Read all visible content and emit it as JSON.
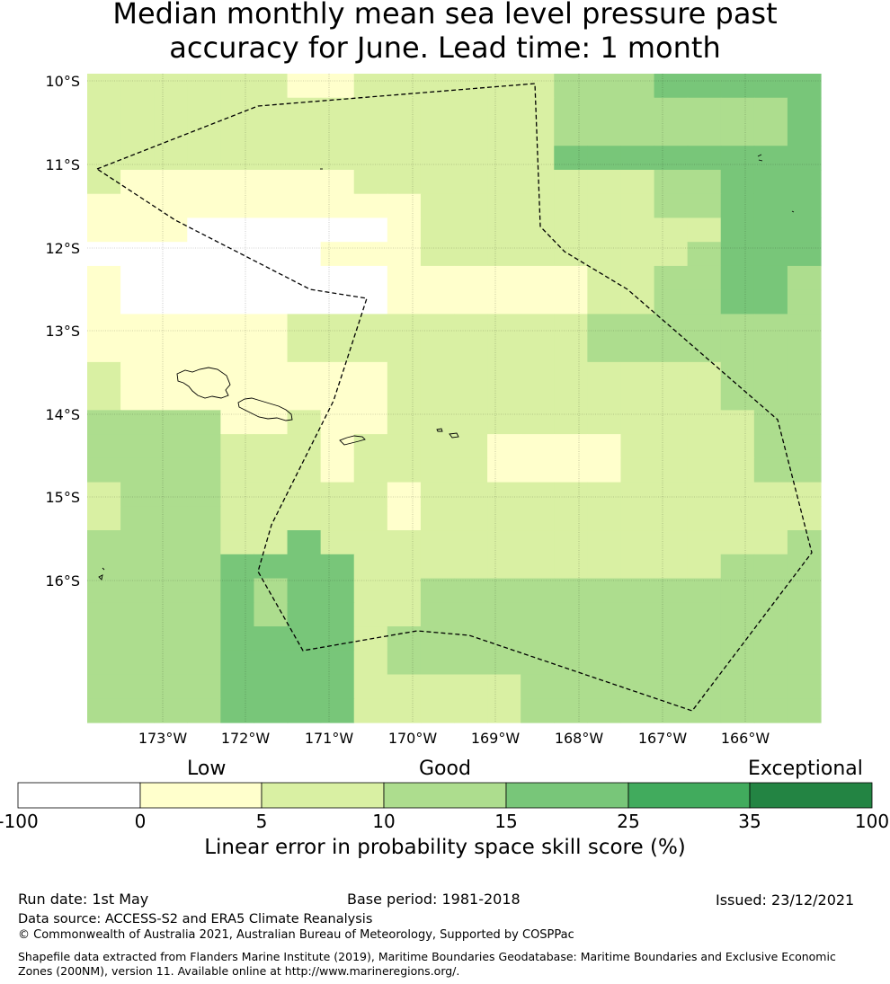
{
  "title": {
    "line1": "Median monthly mean sea level pressure past",
    "line2": "accuracy for June. Lead time: 1 month"
  },
  "map": {
    "lat_labels": [
      "10°S",
      "11°S",
      "12°S",
      "13°S",
      "14°S",
      "15°S",
      "16°S"
    ],
    "lon_labels": [
      "173°W",
      "172°W",
      "171°W",
      "170°W",
      "169°W",
      "168°W",
      "167°W",
      "166°W"
    ],
    "bin_colors": [
      "#ffffff",
      "#ffffcc",
      "#d9f0a3",
      "#addd8e",
      "#78c679",
      "#41ab5d",
      "#238443"
    ],
    "grid": [
      "2222221122222233344444",
      "2222222222222233333334",
      "2222222222222233333334",
      "2222222222222244444444",
      "2111111122222222233444",
      "1111111111222222233444",
      "1110000001222222222444",
      "0000000111222222223444",
      "1000000001111112233443",
      "1000000001111112233443",
      "1111112222222223333333",
      "1111112222222223333333",
      "2111111112222222222333",
      "2111111112222222222333",
      "3333112112222222222233",
      "3333222122221111222233",
      "3333222122221111222233",
      "2333222221222222222222",
      "2333222221222222222222",
      "3333224222222222222223",
      "3333444422222222222333",
      "3333434422333333333333",
      "3333434422333333333333",
      "3333444423333333333333",
      "3333444423333333333333",
      "3333444422222333333333",
      "3333444422222333333333"
    ]
  },
  "colorbar": {
    "categories": [
      "Low",
      "Good",
      "Exceptional"
    ],
    "ticks": [
      "-100",
      "0",
      "5",
      "10",
      "15",
      "25",
      "35",
      "100"
    ],
    "caption": "Linear error in probability space skill score (%)"
  },
  "footer": {
    "run_date": "Run date: 1st May",
    "base_period": "Base period: 1981-2018",
    "issued": "Issued: 23/12/2021",
    "data_source": "Data source: ACCESS-S2 and ERA5 Climate Reanalysis",
    "copyright": "© Commonwealth of Australia 2021, Australian Bureau of Meteorology, Supported by COSPPac",
    "shapefile": "Shapefile data extracted from Flanders Marine Institute (2019), Maritime Boundaries Geodatabase: Maritime Boundaries and Exclusive Economic Zones (200NM), version 11. Available online at http://www.marineregions.org/."
  }
}
